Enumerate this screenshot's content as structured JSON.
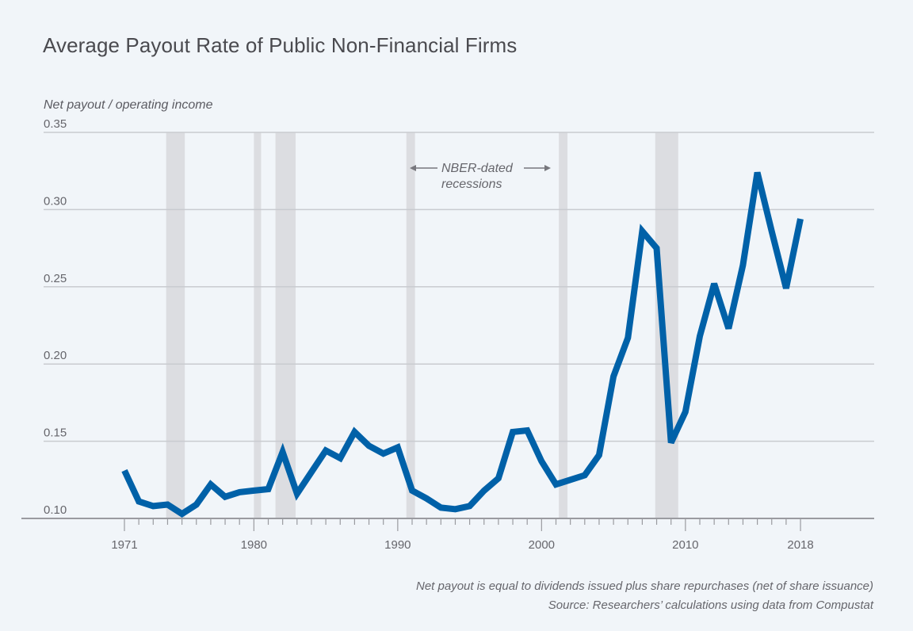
{
  "chart_data": {
    "type": "line",
    "title": "Average Payout Rate of Public Non-Financial Firms",
    "xlabel": "",
    "ylabel": "Net payout / operating income",
    "xlim": [
      1964,
      2023.5
    ],
    "ylim": [
      0.1,
      0.35
    ],
    "grid": true,
    "y_ticks": [
      "0.35",
      "0.30",
      "0.25",
      "0.20",
      "0.15",
      "0.10"
    ],
    "y_tick_values": [
      0.35,
      0.3,
      0.25,
      0.2,
      0.15,
      0.1
    ],
    "x_ticks": [
      "1971",
      "1980",
      "1990",
      "2000",
      "2010",
      "2018"
    ],
    "x_tick_values": [
      1971,
      1980,
      1990,
      2000,
      2010,
      2018
    ],
    "minor_tick_years": [
      1972,
      1973,
      1974,
      1975,
      1976,
      1977,
      1978,
      1979,
      1981,
      1982,
      1983,
      1984,
      1985,
      1986,
      1987,
      1988,
      1989,
      1991,
      1992,
      1993,
      1994,
      1995,
      1996,
      1997,
      1998,
      1999,
      2001,
      2002,
      2003,
      2004,
      2005,
      2006,
      2007,
      2008,
      2009,
      2011,
      2012,
      2013,
      2014,
      2015,
      2016,
      2017
    ],
    "series": [
      {
        "name": "Net payout / operating income",
        "color": "#0061a8",
        "x": [
          1971,
          1972,
          1973,
          1974,
          1975,
          1976,
          1977,
          1978,
          1979,
          1980,
          1981,
          1982,
          1983,
          1984,
          1985,
          1986,
          1987,
          1988,
          1989,
          1990,
          1991,
          1992,
          1993,
          1994,
          1995,
          1996,
          1997,
          1998,
          1999,
          2000,
          2001,
          2002,
          2003,
          2004,
          2005,
          2006,
          2007,
          2008,
          2009,
          2010,
          2011,
          2012,
          2013,
          2014,
          2015,
          2016,
          2017,
          2018
        ],
        "values": [
          0.131,
          0.111,
          0.108,
          0.109,
          0.103,
          0.109,
          0.122,
          0.114,
          0.117,
          0.118,
          0.119,
          0.143,
          0.116,
          0.13,
          0.144,
          0.139,
          0.156,
          0.147,
          0.142,
          0.146,
          0.118,
          0.113,
          0.107,
          0.106,
          0.108,
          0.118,
          0.126,
          0.156,
          0.157,
          0.137,
          0.122,
          0.125,
          0.128,
          0.141,
          0.192,
          0.217,
          0.286,
          0.275,
          0.149,
          0.169,
          0.218,
          0.252,
          0.223,
          0.264,
          0.324,
          0.286,
          0.249,
          0.294
        ]
      }
    ],
    "shaded_regions": {
      "label": "NBER-dated recessions",
      "color": "#dcdde1",
      "periods": [
        [
          1973.9,
          1975.2
        ],
        [
          1980.0,
          1980.5
        ],
        [
          1981.5,
          1982.9
        ],
        [
          1990.6,
          1991.2
        ],
        [
          2001.2,
          2001.8
        ],
        [
          2007.9,
          2009.5
        ]
      ]
    },
    "annotation": {
      "line1": "NBER-dated",
      "line2": "recessions"
    },
    "notes": [
      "Net payout is equal to dividends issued plus share repurchases (net of share issuance)",
      "Source: Researchers’ calculations using data from Compustat"
    ]
  }
}
